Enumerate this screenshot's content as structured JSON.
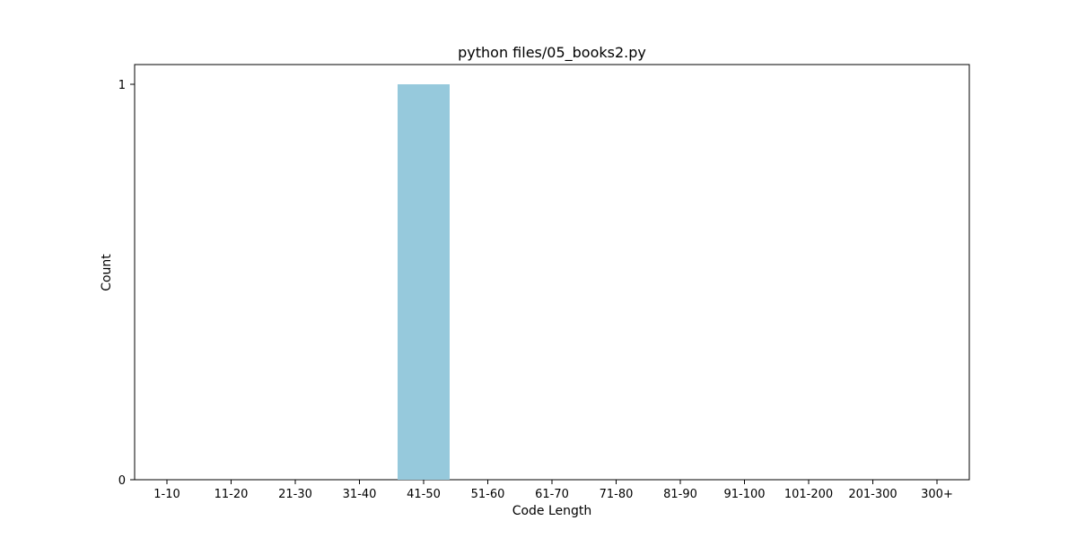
{
  "chart_data": {
    "type": "bar",
    "title": "python files/05_books2.py",
    "xlabel": "Code Length",
    "ylabel": "Count",
    "categories": [
      "1-10",
      "11-20",
      "21-30",
      "31-40",
      "41-50",
      "51-60",
      "61-70",
      "71-80",
      "81-90",
      "91-100",
      "101-200",
      "201-300",
      "300+"
    ],
    "values": [
      0,
      0,
      0,
      0,
      1,
      0,
      0,
      0,
      0,
      0,
      0,
      0,
      0
    ],
    "ylim": [
      0,
      1
    ],
    "yticks": [
      "0",
      "1"
    ],
    "grid": false,
    "bar_color": "#96c9dc"
  }
}
